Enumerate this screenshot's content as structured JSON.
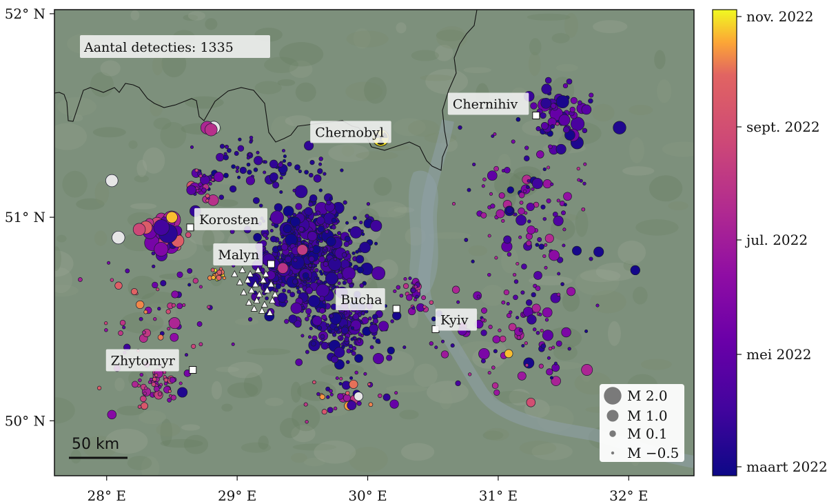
{
  "map": {
    "detection_count_label": "Aantal detecties: 1335",
    "x_tick_labels": [
      "28° E",
      "29° E",
      "30° E",
      "31° E",
      "32° E"
    ],
    "y_tick_labels": [
      "52° N",
      "51° N",
      "50° N"
    ],
    "x_ticks_deg": [
      28,
      29,
      30,
      31,
      32
    ],
    "y_ticks_deg": [
      52,
      51,
      50
    ],
    "lon_range": [
      27.6,
      32.5
    ],
    "lat_range": [
      49.73,
      52.02
    ],
    "scale_bar_label": "50 km",
    "background_color": "#7d907c",
    "cities": [
      {
        "name": "Chernobyl",
        "lon": 30.22,
        "lat": 51.27,
        "label_dx": -125,
        "label_dy": -60,
        "marker": "none"
      },
      {
        "name": "Chernihiv",
        "lon": 31.29,
        "lat": 51.5,
        "label_dx": -128,
        "label_dy": -33,
        "marker": "square"
      },
      {
        "name": "Korosten",
        "lon": 28.64,
        "lat": 50.95,
        "label_dx": 6,
        "label_dy": -28,
        "marker": "square"
      },
      {
        "name": "Malyn",
        "lon": 29.26,
        "lat": 50.77,
        "label_dx": -84,
        "label_dy": -30,
        "marker": "square"
      },
      {
        "name": "Bucha",
        "lon": 30.22,
        "lat": 50.55,
        "label_dx": -88,
        "label_dy": -30,
        "marker": "square"
      },
      {
        "name": "Kyiv",
        "lon": 30.52,
        "lat": 50.45,
        "label_dx": 0,
        "label_dy": -30,
        "marker": "square"
      },
      {
        "name": "Zhytomyr",
        "lon": 28.66,
        "lat": 50.25,
        "label_dx": -126,
        "label_dy": -30,
        "marker": "square"
      }
    ],
    "nuclear_symbol": {
      "name": "radiation-icon",
      "lon": 30.1,
      "lat": 51.39
    },
    "stations": [
      [
        28.98,
        50.72
      ],
      [
        29.04,
        50.74
      ],
      [
        29.1,
        50.72
      ],
      [
        29.16,
        50.74
      ],
      [
        29.22,
        50.72
      ],
      [
        29.02,
        50.68
      ],
      [
        29.08,
        50.69
      ],
      [
        29.14,
        50.67
      ],
      [
        29.2,
        50.69
      ],
      [
        29.26,
        50.67
      ],
      [
        29.05,
        50.63
      ],
      [
        29.11,
        50.64
      ],
      [
        29.17,
        50.62
      ],
      [
        29.23,
        50.64
      ],
      [
        29.29,
        50.62
      ],
      [
        29.09,
        50.58
      ],
      [
        29.15,
        50.59
      ],
      [
        29.21,
        50.57
      ],
      [
        29.27,
        50.59
      ],
      [
        29.19,
        50.54
      ],
      [
        29.25,
        50.53
      ],
      [
        29.13,
        50.55
      ]
    ]
  },
  "colorbar": {
    "tick_labels": [
      "nov. 2022",
      "sept. 2022",
      "jul. 2022",
      "mei 2022",
      "maart 2022"
    ],
    "colormap": "plasma"
  },
  "legend": {
    "entries": [
      {
        "label": "M 2.0",
        "magnitude": 2.0
      },
      {
        "label": "M 1.0",
        "magnitude": 1.0
      },
      {
        "label": "M 0.1",
        "magnitude": 0.1
      },
      {
        "label": "M −0.5",
        "magnitude": -0.5
      }
    ],
    "marker_color": "#7a7a7a",
    "placement": "bottom-right"
  },
  "chart_data": {
    "type": "scatter",
    "title": "",
    "xlabel": "",
    "ylabel": "",
    "detection_count": 1335,
    "xlim": [
      27.6,
      32.5
    ],
    "ylim": [
      49.73,
      52.02
    ],
    "color_scale": "detection time, maart 2022 to nov. 2022",
    "size_scale": "magnitude M",
    "clusters": [
      {
        "lon": 29.55,
        "lat": 50.8,
        "spread_lon": 0.35,
        "spread_lat": 0.22,
        "count": 520,
        "time_range": [
          0.0,
          0.2
        ],
        "mag_range": [
          -0.5,
          1.3
        ]
      },
      {
        "lon": 29.85,
        "lat": 50.47,
        "spread_lon": 0.28,
        "spread_lat": 0.15,
        "count": 170,
        "time_range": [
          0.0,
          0.25
        ],
        "mag_range": [
          -0.5,
          1.0
        ]
      },
      {
        "lon": 28.45,
        "lat": 50.92,
        "spread_lon": 0.08,
        "spread_lat": 0.07,
        "count": 70,
        "time_range": [
          0.05,
          0.85
        ],
        "mag_range": [
          0.0,
          2.2
        ]
      },
      {
        "lon": 31.45,
        "lat": 51.5,
        "spread_lon": 0.2,
        "spread_lat": 0.13,
        "count": 60,
        "time_range": [
          0.0,
          0.35
        ],
        "mag_range": [
          -0.3,
          1.3
        ]
      },
      {
        "lon": 28.4,
        "lat": 50.18,
        "spread_lon": 0.12,
        "spread_lat": 0.08,
        "count": 60,
        "time_range": [
          0.35,
          0.8
        ],
        "mag_range": [
          -0.5,
          0.6
        ]
      },
      {
        "lon": 29.2,
        "lat": 51.25,
        "spread_lon": 0.45,
        "spread_lat": 0.12,
        "count": 70,
        "time_range": [
          0.0,
          0.2
        ],
        "mag_range": [
          -0.5,
          0.6
        ]
      },
      {
        "lon": 31.2,
        "lat": 51.0,
        "spread_lon": 0.4,
        "spread_lat": 0.35,
        "count": 110,
        "time_range": [
          0.0,
          0.6
        ],
        "mag_range": [
          -0.5,
          0.9
        ]
      },
      {
        "lon": 31.1,
        "lat": 50.45,
        "spread_lon": 0.45,
        "spread_lat": 0.25,
        "count": 90,
        "time_range": [
          0.0,
          0.6
        ],
        "mag_range": [
          -0.5,
          0.9
        ]
      },
      {
        "lon": 28.85,
        "lat": 50.72,
        "spread_lon": 0.04,
        "spread_lat": 0.03,
        "count": 25,
        "time_range": [
          0.8,
          1.0
        ],
        "mag_range": [
          -0.5,
          0.2
        ]
      },
      {
        "lon": 30.35,
        "lat": 50.62,
        "spread_lon": 0.1,
        "spread_lat": 0.08,
        "count": 30,
        "time_range": [
          0.1,
          0.7
        ],
        "mag_range": [
          -0.5,
          0.5
        ]
      },
      {
        "lon": 28.3,
        "lat": 50.55,
        "spread_lon": 0.35,
        "spread_lat": 0.3,
        "count": 60,
        "time_range": [
          0.0,
          0.9
        ],
        "mag_range": [
          -0.5,
          0.5
        ]
      },
      {
        "lon": 28.75,
        "lat": 51.15,
        "spread_lon": 0.1,
        "spread_lat": 0.06,
        "count": 30,
        "time_range": [
          0.0,
          0.8
        ],
        "mag_range": [
          -0.5,
          0.9
        ]
      },
      {
        "lon": 29.9,
        "lat": 50.12,
        "spread_lon": 0.3,
        "spread_lat": 0.1,
        "count": 40,
        "time_range": [
          0.0,
          0.95
        ],
        "mag_range": [
          -0.5,
          0.6
        ]
      }
    ],
    "notable_events": [
      {
        "lon": 28.47,
        "lat": 50.92,
        "mag": 2.2,
        "time": 0.08
      },
      {
        "lon": 28.42,
        "lat": 50.95,
        "mag": 1.7,
        "time": 0.15
      },
      {
        "lon": 28.3,
        "lat": 50.95,
        "mag": 1.2,
        "time": 0.82
      },
      {
        "lon": 28.25,
        "lat": 50.94,
        "mag": 1.1,
        "time": 0.72
      },
      {
        "lon": 28.5,
        "lat": 51.0,
        "mag": 0.9,
        "time": 0.95
      },
      {
        "lon": 28.09,
        "lat": 50.9,
        "mag": 1.2,
        "time": null
      },
      {
        "lon": 28.04,
        "lat": 51.18,
        "mag": 1.1,
        "time": null
      },
      {
        "lon": 28.82,
        "lat": 51.44,
        "mag": 1.2,
        "time": null
      },
      {
        "lon": 28.77,
        "lat": 51.44,
        "mag": 1.2,
        "time": 0.55
      },
      {
        "lon": 28.8,
        "lat": 51.43,
        "mag": 1.1,
        "time": 0.6
      },
      {
        "lon": 31.93,
        "lat": 51.44,
        "mag": 1.2,
        "time": 0.05
      },
      {
        "lon": 31.68,
        "lat": 50.25,
        "mag": 0.9,
        "time": 0.55
      },
      {
        "lon": 28.52,
        "lat": 50.48,
        "mag": 0.9,
        "time": 0.55
      },
      {
        "lon": 29.5,
        "lat": 50.84,
        "mag": 0.8,
        "time": 0.65
      },
      {
        "lon": 29.35,
        "lat": 50.75,
        "mag": 0.8,
        "time": 0.62
      },
      {
        "lon": 31.38,
        "lat": 50.42,
        "mag": 0.8,
        "time": 0.25
      },
      {
        "lon": 31.37,
        "lat": 51.63,
        "mag": 0.7,
        "time": 0.1
      },
      {
        "lon": 31.77,
        "lat": 50.83,
        "mag": 0.7,
        "time": 0.03
      },
      {
        "lon": 32.05,
        "lat": 50.74,
        "mag": 0.6,
        "time": 0.02
      },
      {
        "lon": 28.68,
        "lat": 51.03,
        "mag": 0.9,
        "time": 0.1
      },
      {
        "lon": 28.58,
        "lat": 50.14,
        "mag": 0.7,
        "time": 0.05
      },
      {
        "lon": 31.08,
        "lat": 50.33,
        "mag": 0.4,
        "time": 0.95
      },
      {
        "lon": 31.25,
        "lat": 50.09,
        "mag": 0.5,
        "time": 0.75
      },
      {
        "lon": 29.93,
        "lat": 50.12,
        "mag": 0.5,
        "time": null
      },
      {
        "lon": 28.04,
        "lat": 50.03,
        "mag": 0.5,
        "time": 0.4
      }
    ]
  }
}
